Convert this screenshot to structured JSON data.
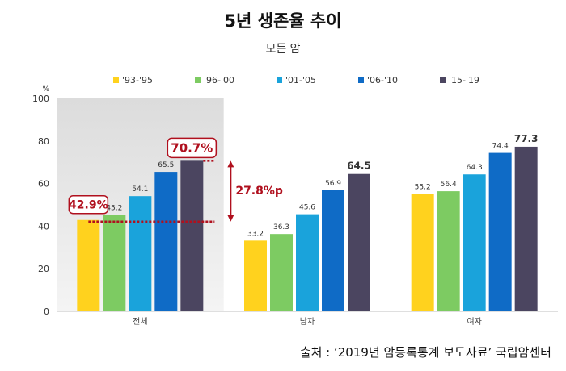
{
  "title": "5년 생존율 추이",
  "subtitle": "모든 암",
  "source": "출처 : ‘2019년 암등록통계 보도자료’ 국립암센터",
  "chart_data": {
    "type": "bar",
    "ylabel": "%",
    "ylim": [
      0,
      100
    ],
    "yticks": [
      0,
      20,
      40,
      60,
      80,
      100
    ],
    "grid": false,
    "legend_position": "top",
    "categories": [
      "전체",
      "남자",
      "여자"
    ],
    "series": [
      {
        "name": "'93-'95",
        "color": "#FFD21E",
        "values": [
          42.9,
          33.2,
          55.2
        ],
        "labels": [
          "42.9%",
          "33.2",
          "55.2"
        ]
      },
      {
        "name": "'96-'00",
        "color": "#7DCB62",
        "values": [
          45.2,
          36.3,
          56.4
        ],
        "labels": [
          "45.2",
          "36.3",
          "56.4"
        ]
      },
      {
        "name": "'01-'05",
        "color": "#1AA3DB",
        "values": [
          54.1,
          45.6,
          64.3
        ],
        "labels": [
          "54.1",
          "45.6",
          "64.3"
        ]
      },
      {
        "name": "'06-'10",
        "color": "#0F6BC6",
        "values": [
          65.5,
          56.9,
          74.4
        ],
        "labels": [
          "65.5",
          "56.9",
          "74.4"
        ]
      },
      {
        "name": "'15-'19",
        "color": "#4B4560",
        "values": [
          70.7,
          64.5,
          77.3
        ],
        "labels": [
          "70.7%",
          "64.5",
          "77.3"
        ]
      }
    ],
    "highlight_category_index": 0,
    "highlight_color": "#DCDCDC",
    "annotation": {
      "text": "27.8%p",
      "color": "#B0101E",
      "from_value": 42.9,
      "to_value": 70.7
    }
  }
}
